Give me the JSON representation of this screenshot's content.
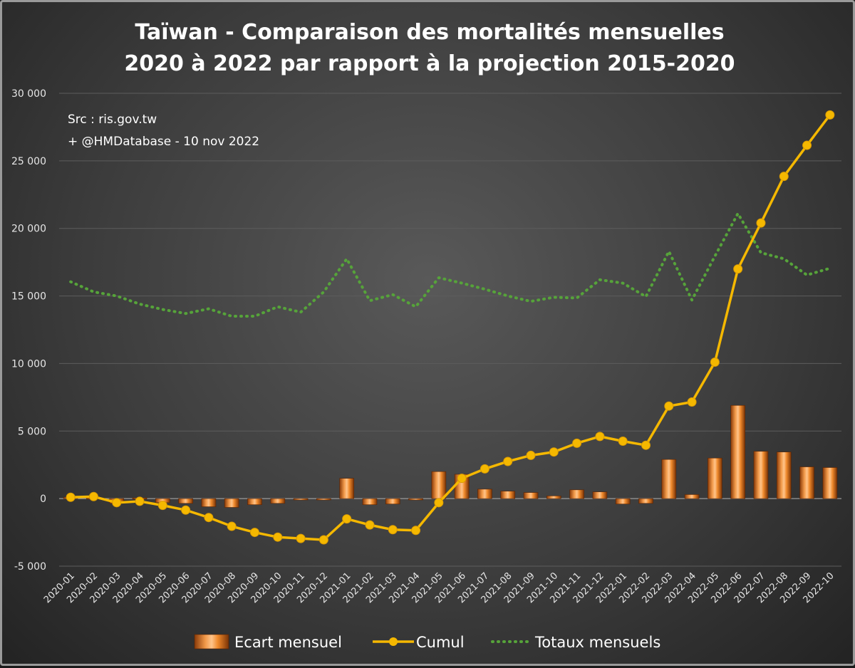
{
  "chart_data": {
    "type": "bar",
    "title_lines": [
      "Taïwan - Comparaison des mortalités mensuelles",
      "2020 à 2022 par rapport à la projection 2015-2020"
    ],
    "source_lines": [
      "Src : ris.gov.tw",
      "+ @HMDatabase - 10 nov 2022"
    ],
    "categories": [
      "2020-01",
      "2020-02",
      "2020-03",
      "2020-04",
      "2020-05",
      "2020-06",
      "2020-07",
      "2020-08",
      "2020-09",
      "2020-10",
      "2020-11",
      "2020-12",
      "2021-01",
      "2021-02",
      "2021-03",
      "2021-04",
      "2021-05",
      "2021-06",
      "2021-07",
      "2021-08",
      "2021-09",
      "2021-10",
      "2021-11",
      "2021-12",
      "2022-01",
      "2022-02",
      "2022-03",
      "2022-04",
      "2022-05",
      "2022-06",
      "2022-07",
      "2022-08",
      "2022-09",
      "2022-10"
    ],
    "ylim": [
      -5000,
      30000
    ],
    "yticks": [
      -5000,
      0,
      5000,
      10000,
      15000,
      20000,
      25000,
      30000
    ],
    "ytick_labels": [
      "-5 000",
      "0",
      "5 000",
      "10 000",
      "15 000",
      "20 000",
      "25 000",
      "30 000"
    ],
    "grid": true,
    "legend_position": "bottom",
    "series": [
      {
        "name": "Ecart mensuel",
        "type": "bar",
        "color": "#e8761e",
        "values": [
          100,
          50,
          -350,
          50,
          -300,
          -350,
          -600,
          -650,
          -450,
          -350,
          -100,
          -100,
          1500,
          -450,
          -400,
          -100,
          2000,
          1800,
          700,
          550,
          450,
          200,
          650,
          500,
          -400,
          -350,
          2900,
          300,
          3000,
          6900,
          3500,
          3450,
          2350,
          2300
        ]
      },
      {
        "name": "Cumul",
        "type": "line",
        "color": "#f5b800",
        "values": [
          100,
          150,
          -300,
          -200,
          -500,
          -850,
          -1400,
          -2050,
          -2500,
          -2850,
          -2950,
          -3050,
          -1500,
          -1950,
          -2300,
          -2350,
          -300,
          1500,
          2200,
          2750,
          3200,
          3450,
          4100,
          4600,
          4250,
          3950,
          6850,
          7150,
          10100,
          17000,
          20400,
          23850,
          26150,
          28400
        ]
      },
      {
        "name": "Totaux mensuels",
        "type": "line",
        "style": "dotted",
        "color": "#56a33a",
        "values": [
          16050,
          15300,
          15000,
          14400,
          14000,
          13700,
          14050,
          13500,
          13500,
          14200,
          13800,
          15300,
          17750,
          14650,
          15100,
          14200,
          16350,
          15950,
          15500,
          15000,
          14600,
          14900,
          14850,
          16200,
          15950,
          14950,
          18300,
          14700,
          17950,
          21100,
          18200,
          17750,
          16550,
          17050
        ]
      }
    ]
  }
}
